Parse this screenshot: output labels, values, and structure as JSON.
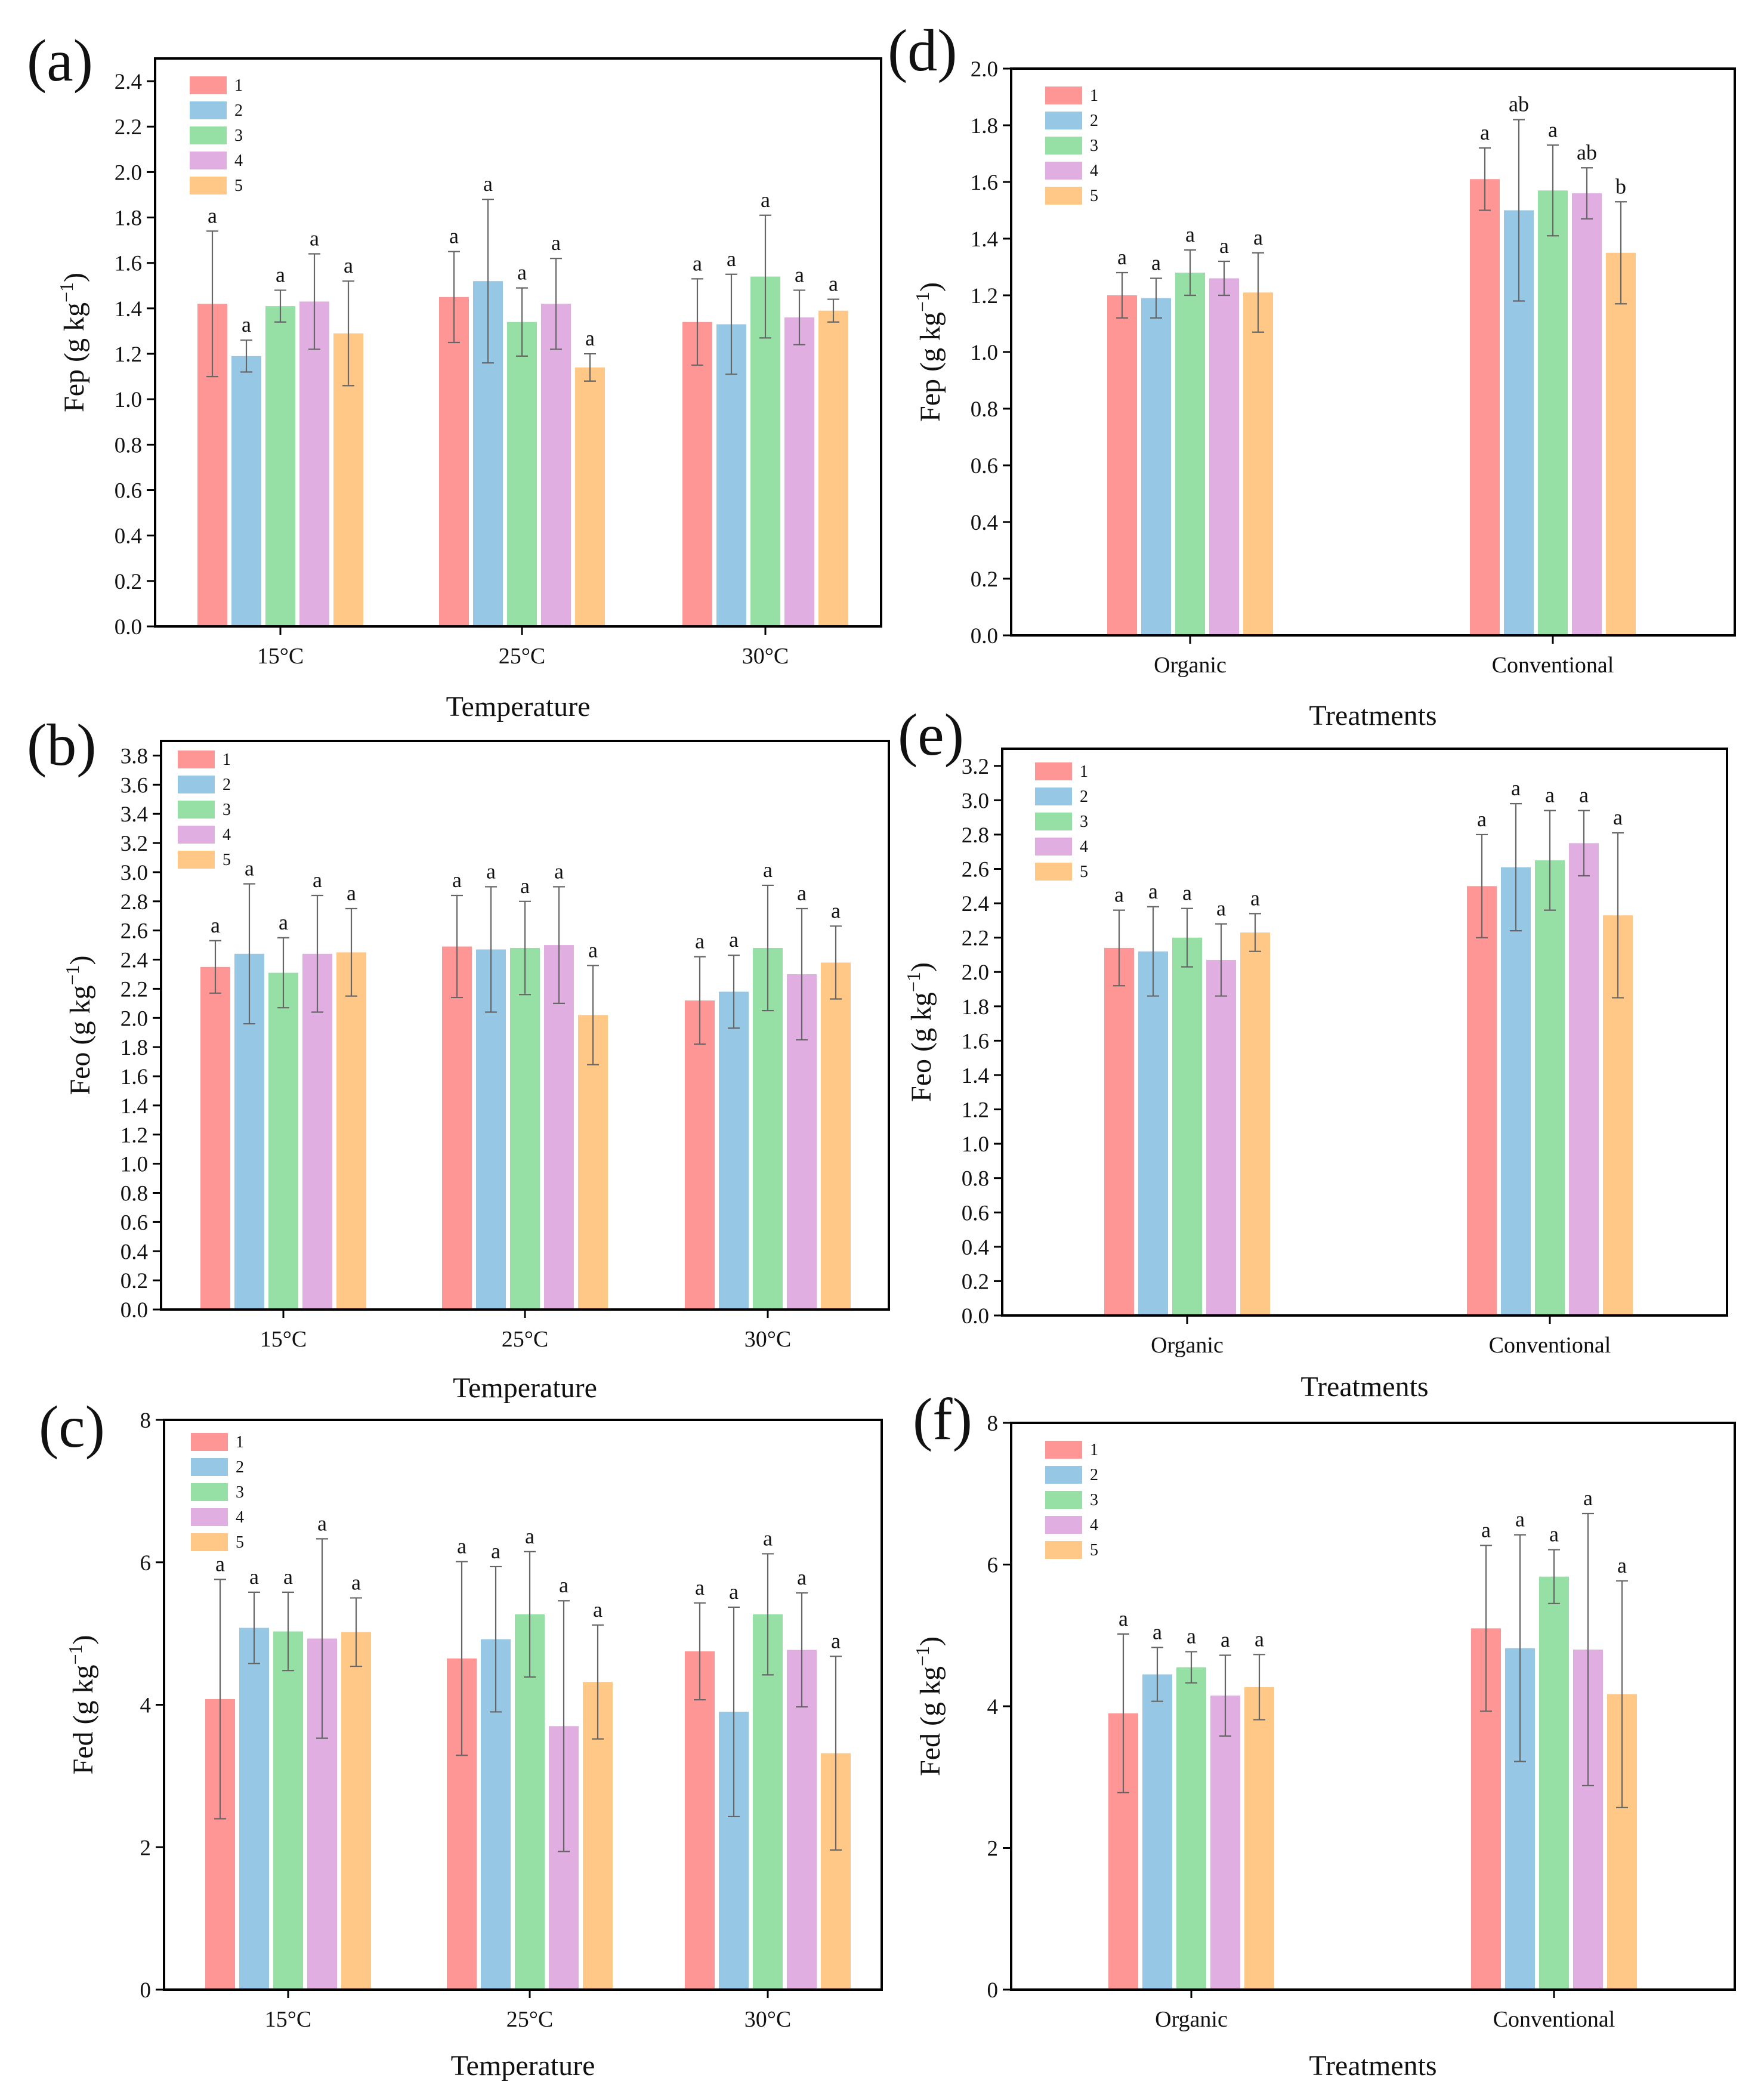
{
  "colors": {
    "1": "#ff9696",
    "2": "#96c8e6",
    "3": "#96e0a6",
    "4": "#e0aee0",
    "5": "#ffc887"
  },
  "legend": [
    "1",
    "2",
    "3",
    "4",
    "5"
  ],
  "chart_data": [
    {
      "id": "a",
      "type": "bar",
      "letter": "(a)",
      "xlabel": "Temperature",
      "ylabel_main": "Fep (g kg",
      "ylabel_sup": "−1",
      "ylabel_end": ")",
      "ylim": [
        0,
        2.5
      ],
      "yticks": [
        "0.0",
        "0.2",
        "0.4",
        "0.6",
        "0.8",
        "1.0",
        "1.2",
        "1.4",
        "1.6",
        "1.8",
        "2.0",
        "2.2",
        "2.4"
      ],
      "categories": [
        "15°C",
        "25°C",
        "30°C"
      ],
      "series": [
        {
          "name": "1",
          "values": [
            1.42,
            1.45,
            1.34
          ],
          "errors": [
            0.32,
            0.2,
            0.19
          ],
          "labels": [
            "a",
            "a",
            "a"
          ]
        },
        {
          "name": "2",
          "values": [
            1.19,
            1.52,
            1.33
          ],
          "errors": [
            0.07,
            0.36,
            0.22
          ],
          "labels": [
            "a",
            "a",
            "a"
          ]
        },
        {
          "name": "3",
          "values": [
            1.41,
            1.34,
            1.54
          ],
          "errors": [
            0.07,
            0.15,
            0.27
          ],
          "labels": [
            "a",
            "a",
            "a"
          ]
        },
        {
          "name": "4",
          "values": [
            1.43,
            1.42,
            1.36
          ],
          "errors": [
            0.21,
            0.2,
            0.12
          ],
          "labels": [
            "a",
            "a",
            "a"
          ]
        },
        {
          "name": "5",
          "values": [
            1.29,
            1.14,
            1.39
          ],
          "errors": [
            0.23,
            0.06,
            0.05
          ],
          "labels": [
            "a",
            "a",
            "a"
          ]
        }
      ]
    },
    {
      "id": "b",
      "type": "bar",
      "letter": "(b)",
      "xlabel": "Temperature",
      "ylabel_main": "Feo (g kg",
      "ylabel_sup": "−1",
      "ylabel_end": ")",
      "ylim": [
        0,
        3.9
      ],
      "yticks": [
        "0.0",
        "0.2",
        "0.4",
        "0.6",
        "0.8",
        "1.0",
        "1.2",
        "1.4",
        "1.6",
        "1.8",
        "2.0",
        "2.2",
        "2.4",
        "2.6",
        "2.8",
        "3.0",
        "3.2",
        "3.4",
        "3.6",
        "3.8"
      ],
      "categories": [
        "15°C",
        "25°C",
        "30°C"
      ],
      "series": [
        {
          "name": "1",
          "values": [
            2.35,
            2.49,
            2.12
          ],
          "errors": [
            0.18,
            0.35,
            0.3
          ],
          "labels": [
            "a",
            "a",
            "a"
          ]
        },
        {
          "name": "2",
          "values": [
            2.44,
            2.47,
            2.18
          ],
          "errors": [
            0.48,
            0.43,
            0.25
          ],
          "labels": [
            "a",
            "a",
            "a"
          ]
        },
        {
          "name": "3",
          "values": [
            2.31,
            2.48,
            2.48
          ],
          "errors": [
            0.24,
            0.32,
            0.43
          ],
          "labels": [
            "a",
            "a",
            "a"
          ]
        },
        {
          "name": "4",
          "values": [
            2.44,
            2.5,
            2.3
          ],
          "errors": [
            0.4,
            0.4,
            0.45
          ],
          "labels": [
            "a",
            "a",
            "a"
          ]
        },
        {
          "name": "5",
          "values": [
            2.45,
            2.02,
            2.38
          ],
          "errors": [
            0.3,
            0.34,
            0.25
          ],
          "labels": [
            "a",
            "a",
            "a"
          ]
        }
      ]
    },
    {
      "id": "c",
      "type": "bar",
      "letter": "(c)",
      "xlabel": "Temperature",
      "ylabel_main": "Fed (g kg",
      "ylabel_sup": "−1",
      "ylabel_end": ")",
      "ylim": [
        0,
        8
      ],
      "yticks": [
        "0",
        "2",
        "4",
        "6",
        "8"
      ],
      "categories": [
        "15°C",
        "25°C",
        "30°C"
      ],
      "series": [
        {
          "name": "1",
          "values": [
            4.08,
            4.65,
            4.75
          ],
          "errors": [
            1.68,
            1.36,
            0.68
          ],
          "labels": [
            "a",
            "a",
            "a"
          ]
        },
        {
          "name": "2",
          "values": [
            5.08,
            4.92,
            3.9
          ],
          "errors": [
            0.5,
            1.02,
            1.47
          ],
          "labels": [
            "a",
            "a",
            "a"
          ]
        },
        {
          "name": "3",
          "values": [
            5.03,
            5.27,
            5.27
          ],
          "errors": [
            0.55,
            0.88,
            0.85
          ],
          "labels": [
            "a",
            "a",
            "a"
          ]
        },
        {
          "name": "4",
          "values": [
            4.93,
            3.7,
            4.77
          ],
          "errors": [
            1.4,
            1.76,
            0.8
          ],
          "labels": [
            "a",
            "a",
            "a"
          ]
        },
        {
          "name": "5",
          "values": [
            5.02,
            4.32,
            3.32
          ],
          "errors": [
            0.48,
            0.8,
            1.36
          ],
          "labels": [
            "a",
            "a",
            "a"
          ]
        }
      ]
    },
    {
      "id": "d",
      "type": "bar",
      "letter": "(d)",
      "xlabel": "Treatments",
      "ylabel_main": "Fep (g kg",
      "ylabel_sup": "−1",
      "ylabel_end": ")",
      "ylim": [
        0,
        2.0
      ],
      "yticks": [
        "0.0",
        "0.2",
        "0.4",
        "0.6",
        "0.8",
        "1.0",
        "1.2",
        "1.4",
        "1.6",
        "1.8",
        "2.0"
      ],
      "categories": [
        "Organic",
        "Conventional"
      ],
      "series": [
        {
          "name": "1",
          "values": [
            1.2,
            1.61
          ],
          "errors": [
            0.08,
            0.11
          ],
          "labels": [
            "a",
            "a"
          ]
        },
        {
          "name": "2",
          "values": [
            1.19,
            1.5
          ],
          "errors": [
            0.07,
            0.32
          ],
          "labels": [
            "a",
            "ab"
          ]
        },
        {
          "name": "3",
          "values": [
            1.28,
            1.57
          ],
          "errors": [
            0.08,
            0.16
          ],
          "labels": [
            "a",
            "a"
          ]
        },
        {
          "name": "4",
          "values": [
            1.26,
            1.56
          ],
          "errors": [
            0.06,
            0.09
          ],
          "labels": [
            "a",
            "ab"
          ]
        },
        {
          "name": "5",
          "values": [
            1.21,
            1.35
          ],
          "errors": [
            0.14,
            0.18
          ],
          "labels": [
            "a",
            "b"
          ]
        }
      ]
    },
    {
      "id": "e",
      "type": "bar",
      "letter": "(e)",
      "xlabel": "Treatments",
      "ylabel_main": "Feo (g kg",
      "ylabel_sup": "−1",
      "ylabel_end": ")",
      "ylim": [
        0,
        3.3
      ],
      "yticks": [
        "0.0",
        "0.2",
        "0.4",
        "0.6",
        "0.8",
        "1.0",
        "1.2",
        "1.4",
        "1.6",
        "1.8",
        "2.0",
        "2.2",
        "2.4",
        "2.6",
        "2.8",
        "3.0",
        "3.2"
      ],
      "categories": [
        "Organic",
        "Conventional"
      ],
      "series": [
        {
          "name": "1",
          "values": [
            2.14,
            2.5
          ],
          "errors": [
            0.22,
            0.3
          ],
          "labels": [
            "a",
            "a"
          ]
        },
        {
          "name": "2",
          "values": [
            2.12,
            2.61
          ],
          "errors": [
            0.26,
            0.37
          ],
          "labels": [
            "a",
            "a"
          ]
        },
        {
          "name": "3",
          "values": [
            2.2,
            2.65
          ],
          "errors": [
            0.17,
            0.29
          ],
          "labels": [
            "a",
            "a"
          ]
        },
        {
          "name": "4",
          "values": [
            2.07,
            2.75
          ],
          "errors": [
            0.21,
            0.19
          ],
          "labels": [
            "a",
            "a"
          ]
        },
        {
          "name": "5",
          "values": [
            2.23,
            2.33
          ],
          "errors": [
            0.11,
            0.48
          ],
          "labels": [
            "a",
            "a"
          ]
        }
      ]
    },
    {
      "id": "f",
      "type": "bar",
      "letter": "(f)",
      "xlabel": "Treatments",
      "ylabel_main": "Fed (g kg",
      "ylabel_sup": "−1",
      "ylabel_end": ")",
      "ylim": [
        0,
        8
      ],
      "yticks": [
        "0",
        "2",
        "4",
        "6",
        "8"
      ],
      "categories": [
        "Organic",
        "Conventional"
      ],
      "series": [
        {
          "name": "1",
          "values": [
            3.9,
            5.1
          ],
          "errors": [
            1.12,
            1.17
          ],
          "labels": [
            "a",
            "a"
          ]
        },
        {
          "name": "2",
          "values": [
            4.45,
            4.82
          ],
          "errors": [
            0.38,
            1.6
          ],
          "labels": [
            "a",
            "a"
          ]
        },
        {
          "name": "3",
          "values": [
            4.55,
            5.83
          ],
          "errors": [
            0.22,
            0.38
          ],
          "labels": [
            "a",
            "a"
          ]
        },
        {
          "name": "4",
          "values": [
            4.15,
            4.8
          ],
          "errors": [
            0.57,
            1.92
          ],
          "labels": [
            "a",
            "a"
          ]
        },
        {
          "name": "5",
          "values": [
            4.27,
            4.17
          ],
          "errors": [
            0.46,
            1.6
          ],
          "labels": [
            "a",
            "a"
          ]
        }
      ]
    }
  ]
}
